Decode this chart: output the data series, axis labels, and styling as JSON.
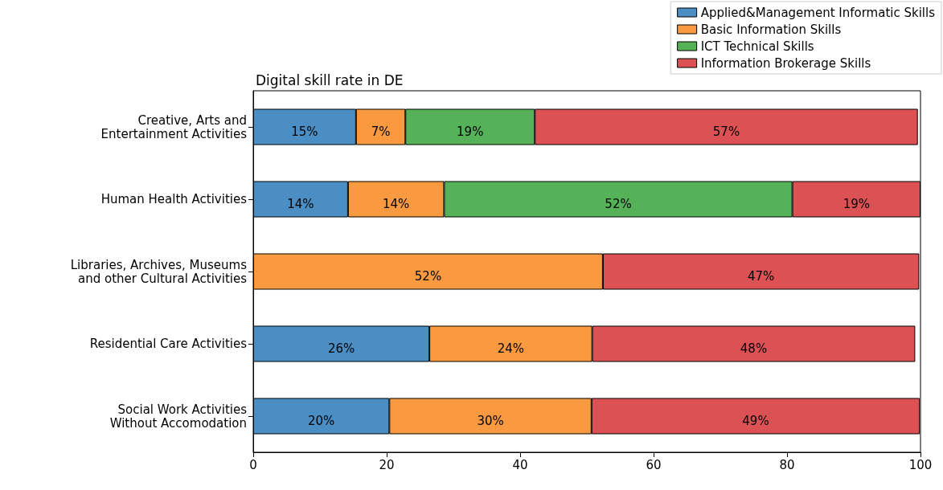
{
  "chart_data": {
    "type": "bar",
    "orientation": "horizontal",
    "stacked": true,
    "title": "Digital skill rate in DE",
    "categories": [
      "Creative, Arts and\nEntertainment Activities",
      "Human Health Activities",
      "Libraries, Archives, Museums\nand other Cultural Activities",
      "Residential Care Activities",
      "Social Work Activities\nWithout Accomodation"
    ],
    "series": [
      {
        "name": "Applied&Management Informatic Skills",
        "color": "#4a8ec4",
        "values": [
          15.4,
          14.2,
          null,
          26.4,
          20.4
        ],
        "value_labels": [
          "15%",
          "14%",
          null,
          "26%",
          "20%"
        ]
      },
      {
        "name": "Basic Information Skills",
        "color": "#fa9a40",
        "values": [
          7.4,
          14.4,
          52.4,
          24.4,
          30.3
        ],
        "value_labels": [
          "7%",
          "14%",
          "52%",
          "24%",
          "30%"
        ]
      },
      {
        "name": "ICT Technical Skills",
        "color": "#55b258",
        "values": [
          19.4,
          52.2,
          null,
          null,
          null
        ],
        "value_labels": [
          "19%",
          "52%",
          null,
          null,
          null
        ]
      },
      {
        "name": "Information Brokerage Skills",
        "color": "#dc5254",
        "values": [
          57.4,
          19.2,
          47.4,
          48.4,
          49.2
        ],
        "value_labels": [
          "57%",
          "19%",
          "47%",
          "48%",
          "49%"
        ]
      }
    ],
    "xlim": [
      0,
      100
    ],
    "xticks": [
      0,
      20,
      40,
      60,
      80,
      100
    ],
    "grid": false,
    "legend": "top right"
  }
}
